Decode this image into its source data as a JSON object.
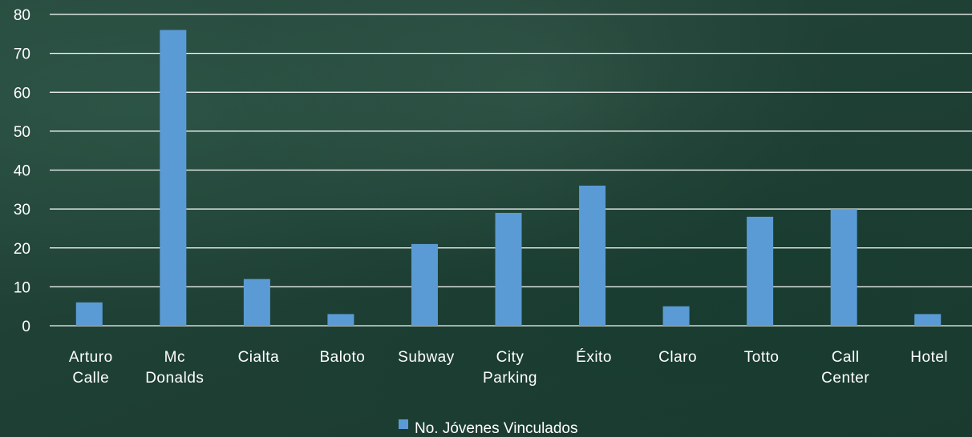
{
  "chart_data": {
    "type": "bar",
    "title": "",
    "xlabel": "",
    "ylabel": "",
    "categories": [
      [
        "Arturo",
        "Calle"
      ],
      [
        "Mc",
        "Donalds"
      ],
      [
        "Cialta"
      ],
      [
        "Baloto"
      ],
      [
        "Subway"
      ],
      [
        "City",
        "Parking"
      ],
      [
        "Éxito"
      ],
      [
        "Claro"
      ],
      [
        "Totto"
      ],
      [
        "Call",
        "Center"
      ],
      [
        "Hotel"
      ]
    ],
    "series": [
      {
        "name": "No. Jóvenes Vinculados",
        "color": "#5b9bd5",
        "values": [
          6,
          76,
          12,
          3,
          21,
          29,
          36,
          5,
          28,
          30,
          3
        ]
      }
    ],
    "ylim": [
      0,
      80
    ],
    "yticks": [
      0,
      10,
      20,
      30,
      40,
      50,
      60,
      70,
      80
    ],
    "grid": true,
    "legend": "bottom"
  }
}
